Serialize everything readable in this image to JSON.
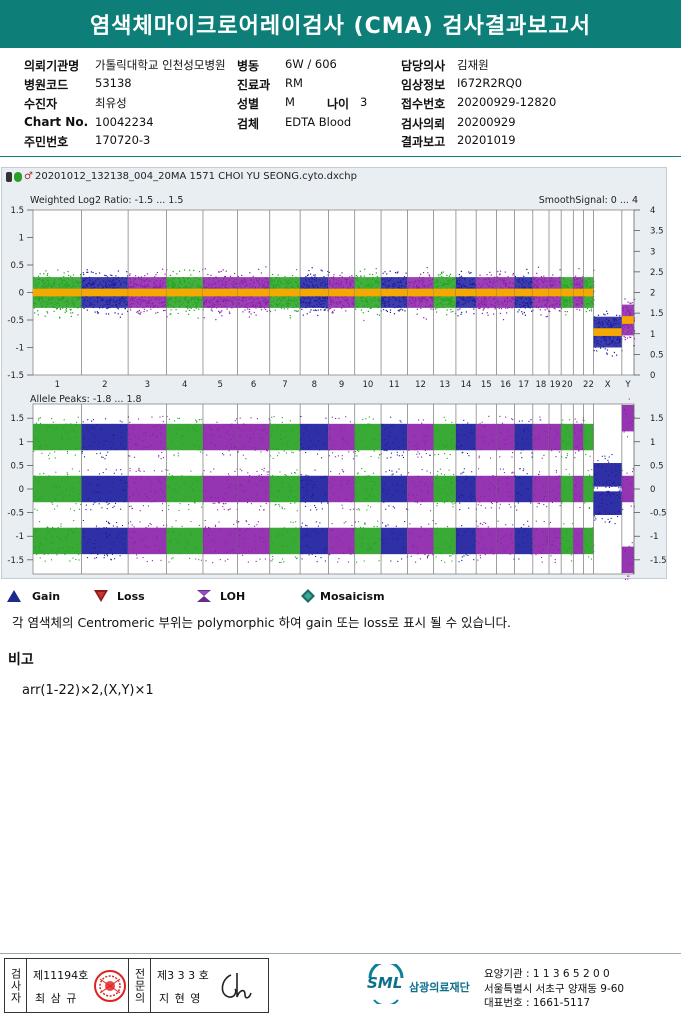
{
  "header": {
    "title": "염색체마이크로어레이검사 (CMA) 검사결과보고서"
  },
  "info": {
    "col1": [
      {
        "label": "의뢰기관명",
        "value": "가톨릭대학교 인천성모병원"
      },
      {
        "label": "병원코드",
        "value": "53138"
      },
      {
        "label": "수진자",
        "value": "최유성"
      },
      {
        "label": "Chart No.",
        "value": "10042234"
      },
      {
        "label": "주민번호",
        "value": "170720-3"
      }
    ],
    "col2": [
      {
        "label": "병동",
        "value": "6W / 606"
      },
      {
        "label": "진료과",
        "value": "RM"
      },
      {
        "label": "성별",
        "value": "M"
      },
      {
        "label": "검체",
        "value": "EDTA Blood"
      }
    ],
    "age": {
      "label": "나이",
      "value": "3"
    },
    "col3": [
      {
        "label": "담당의사",
        "value": "김재원"
      },
      {
        "label": "임상정보",
        "value": "I672R2RQ0"
      },
      {
        "label": "접수번호",
        "value": "20200929-12820"
      },
      {
        "label": "검사의뢰",
        "value": "20200929"
      },
      {
        "label": "결과보고",
        "value": "20201019"
      }
    ]
  },
  "chart": {
    "filename": "20201012_132138_004_20MA 1571 CHOI YU SEONG.cyto.dxchp",
    "top_label": "Weighted Log2 Ratio: -1.5 ... 1.5",
    "top_right_label": "SmoothSignal: 0 ... 4",
    "top_left_ticks": [
      "1.5",
      "1",
      "0.5",
      "0",
      "-0.5",
      "-1",
      "-1.5"
    ],
    "top_right_ticks": [
      "4",
      "3.5",
      "3",
      "2.5",
      "2",
      "1.5",
      "1",
      "0.5",
      "0"
    ],
    "bottom_label": "Allele Peaks: -1.8 ... 1.8",
    "bottom_left_ticks": [
      "1.5",
      "1",
      "0.5",
      "0",
      "-0.5",
      "-1",
      "-1.5"
    ],
    "bottom_right_ticks": [
      "1.5",
      "1",
      "0.5",
      "0",
      "-0.5",
      "-1",
      "-1.5"
    ],
    "chromosomes": [
      "1",
      "2",
      "3",
      "4",
      "5",
      "6",
      "7",
      "8",
      "9",
      "10",
      "11",
      "12",
      "13",
      "14",
      "15",
      "16",
      "17",
      "18",
      "19",
      "20",
      "21",
      "22",
      "X",
      "Y"
    ],
    "chrom_labels": [
      "1",
      "2",
      "3",
      "4",
      "5",
      "6",
      "7",
      "8",
      "9",
      "10",
      "11",
      "12",
      "13",
      "14",
      "15",
      "16",
      "17",
      "18",
      "19",
      "20",
      "22",
      "X",
      "Y"
    ],
    "chrom_label_positions_note": "",
    "colors": {
      "green": "#22a11f",
      "blue": "#1a1a9c",
      "purple": "#8a1fa8",
      "orange": "#f5a800",
      "bg": "#e9eef2"
    }
  },
  "legend": [
    {
      "name": "Gain",
      "color": "#1a2b8c",
      "shape": "triangle-up"
    },
    {
      "name": "Loss",
      "color": "#9c1a1a",
      "shape": "triangle-down"
    },
    {
      "name": "LOH",
      "color": "#7a2a9c",
      "shape": "bowtie"
    },
    {
      "name": "Mosaicism",
      "color": "#1a7a6e",
      "shape": "diamond"
    }
  ],
  "note": "각 염색체의 Centromeric 부위는 polymorphic 하여 gain 또는 loss로 표시 될 수 있습니다.",
  "remark": {
    "title": "비고",
    "text": "arr(1-22)×2,(X,Y)×1"
  },
  "footer": {
    "inspector_side": "검사자",
    "inspector_no": "제11194호",
    "inspector_name": "최 삼 규",
    "specialist_side": "전문의",
    "specialist_no": "제3 3 3 호",
    "specialist_name": "지 현 영",
    "org_logo": "SML",
    "org_name": "삼광의료재단",
    "org_code": "요양기관 : 1 1 3 6 5 2 0 0",
    "org_address": "서울특별시 서초구 양재동 9-60",
    "org_phone": "대표번호 : 1661-5117"
  }
}
